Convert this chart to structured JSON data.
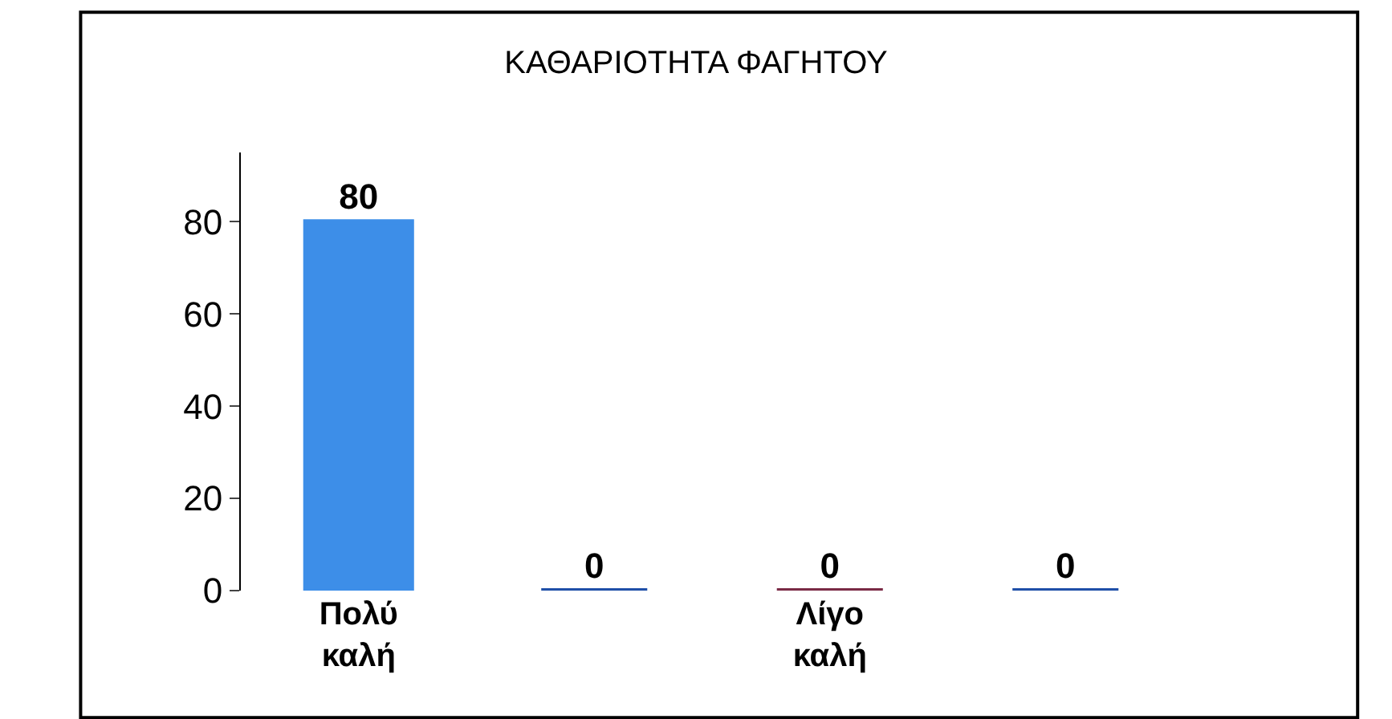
{
  "chart_data": {
    "type": "bar",
    "title": "ΚΑΘΑΡΙΟΤΗΤΑ ΦΑΓΗΤΟΥ",
    "categories": [
      "Πολύ καλή",
      null,
      "Λίγο καλή",
      null
    ],
    "values": [
      80,
      0,
      0,
      0
    ],
    "colors": [
      "#3d8ee8",
      "#1f4fa8",
      "#7a2a45",
      "#1f4fa8"
    ],
    "ylim": [
      0,
      95
    ],
    "yticks": [
      0,
      20,
      40,
      60,
      80
    ],
    "legend": false,
    "data_labels": true
  }
}
